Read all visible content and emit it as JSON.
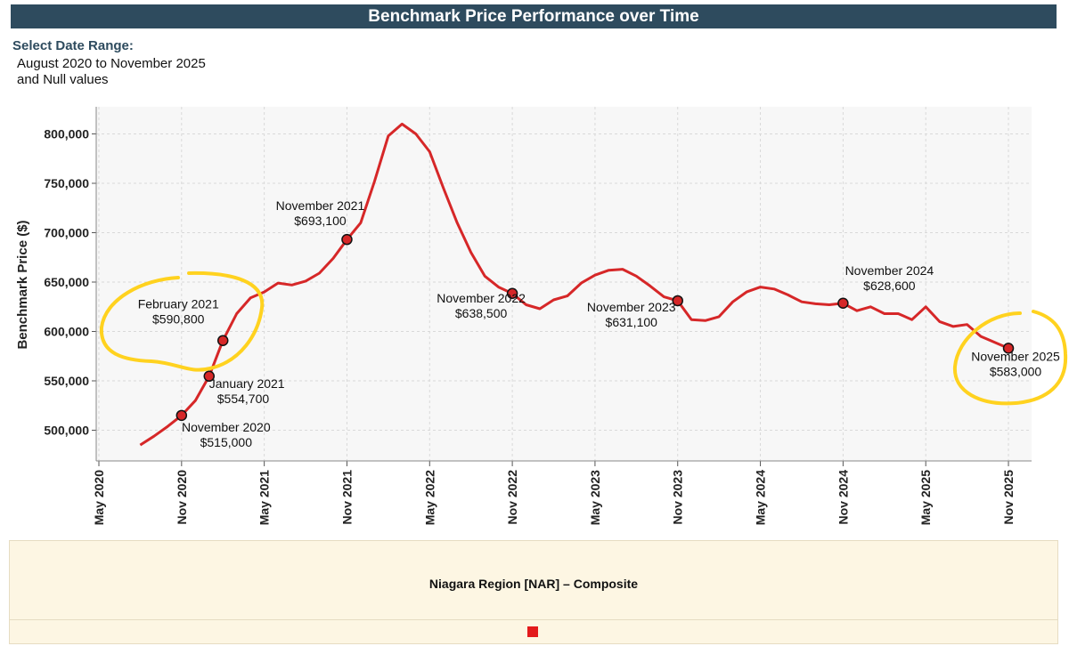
{
  "header": {
    "title": "Benchmark Price Performance over Time"
  },
  "date_range": {
    "heading": "Select Date Range:",
    "line1": "August 2020 to November 2025",
    "line2": "and Null values"
  },
  "legend": {
    "label": "Niagara Region [NAR] – Composite",
    "swatch_color": "#e31a1c"
  },
  "chart_data": {
    "type": "line",
    "title": "",
    "ylabel": "Benchmark Price ($)",
    "xlabel": "",
    "ylim": [
      470000,
      815000
    ],
    "xlim": [
      "2020-05",
      "2025-11"
    ],
    "grid": true,
    "y_ticks": [
      500000,
      550000,
      600000,
      650000,
      700000,
      750000,
      800000
    ],
    "y_tick_labels": [
      "500,000",
      "550,000",
      "600,000",
      "650,000",
      "700,000",
      "750,000",
      "800,000"
    ],
    "x_ticks": [
      "2020-05",
      "2020-11",
      "2021-05",
      "2021-11",
      "2022-05",
      "2022-11",
      "2023-05",
      "2023-11",
      "2024-05",
      "2024-11",
      "2025-05",
      "2025-11"
    ],
    "x_tick_labels": [
      "May 2020",
      "Nov 2020",
      "May 2021",
      "Nov 2021",
      "May 2022",
      "Nov 2022",
      "May 2023",
      "Nov 2023",
      "May 2024",
      "Nov 2024",
      "May 2025",
      "Nov 2025"
    ],
    "line_color": "#d62728",
    "series": [
      {
        "x": [
          "2020-08",
          "2020-09",
          "2020-10",
          "2020-11",
          "2020-12",
          "2021-01",
          "2021-02",
          "2021-03",
          "2021-04",
          "2021-05",
          "2021-06",
          "2021-07",
          "2021-08",
          "2021-09",
          "2021-10",
          "2021-11",
          "2021-12",
          "2022-01",
          "2022-02",
          "2022-03",
          "2022-04",
          "2022-05",
          "2022-06",
          "2022-07",
          "2022-08",
          "2022-09",
          "2022-10",
          "2022-11",
          "2022-12",
          "2023-01",
          "2023-02",
          "2023-03",
          "2023-04",
          "2023-05",
          "2023-06",
          "2023-07",
          "2023-08",
          "2023-09",
          "2023-10",
          "2023-11",
          "2023-12",
          "2024-01",
          "2024-02",
          "2024-03",
          "2024-04",
          "2024-05",
          "2024-06",
          "2024-07",
          "2024-08",
          "2024-09",
          "2024-10",
          "2024-11",
          "2024-12",
          "2025-01",
          "2025-02",
          "2025-03",
          "2025-04",
          "2025-05",
          "2025-06",
          "2025-07",
          "2025-08",
          "2025-09",
          "2025-10",
          "2025-11"
        ],
        "values": [
          485000,
          494000,
          504000,
          515000,
          530000,
          554700,
          590800,
          618000,
          634000,
          640000,
          649000,
          647000,
          651000,
          659000,
          674000,
          693100,
          710000,
          752000,
          798000,
          810000,
          800000,
          782000,
          745000,
          710000,
          680000,
          656000,
          645000,
          638500,
          627000,
          623000,
          632000,
          636000,
          649000,
          657000,
          662000,
          663000,
          656000,
          646000,
          635000,
          631100,
          612000,
          611000,
          615000,
          630000,
          640000,
          645000,
          643000,
          637000,
          630000,
          628000,
          627000,
          628600,
          621000,
          625000,
          618000,
          618000,
          612000,
          625000,
          610000,
          605000,
          607000,
          595000,
          589000,
          583000
        ]
      }
    ],
    "annotations": [
      {
        "date": "2020-11",
        "value": 515000,
        "label": "November 2020",
        "price": "$515,000"
      },
      {
        "date": "2021-01",
        "value": 554700,
        "label": "January 2021",
        "price": "$554,700"
      },
      {
        "date": "2021-02",
        "value": 590800,
        "label": "February 2021",
        "price": "$590,800"
      },
      {
        "date": "2021-11",
        "value": 693100,
        "label": "November 2021",
        "price": "$693,100"
      },
      {
        "date": "2022-11",
        "value": 638500,
        "label": "November 2022",
        "price": "$638,500"
      },
      {
        "date": "2023-11",
        "value": 631100,
        "label": "November 2023",
        "price": "$631,100"
      },
      {
        "date": "2024-11",
        "value": 628600,
        "label": "November 2024",
        "price": "$628,600"
      },
      {
        "date": "2025-11",
        "value": 583000,
        "label": "November 2025",
        "price": "$583,000"
      }
    ],
    "highlight_color": "#ffd21f"
  }
}
